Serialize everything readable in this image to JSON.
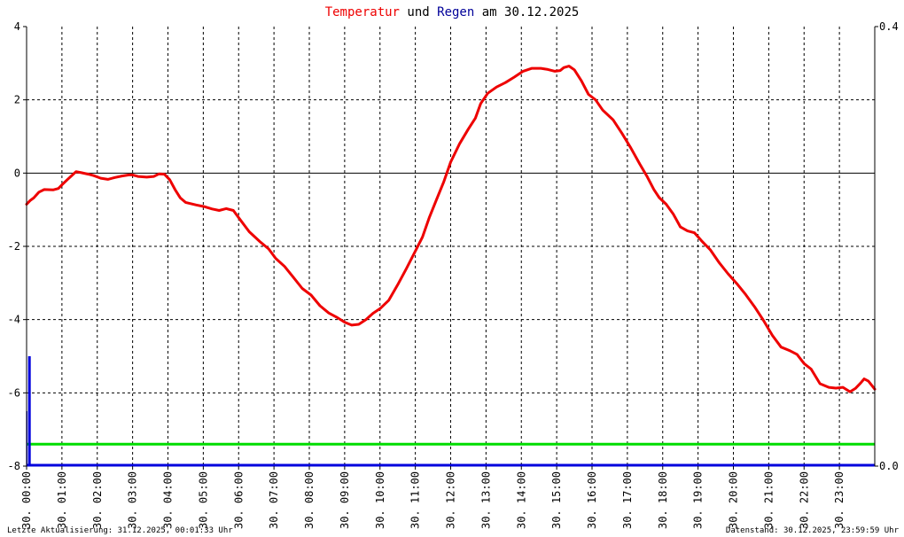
{
  "title": {
    "part1": "Temperatur",
    "part2": " und ",
    "part3": "Regen",
    "part4": " am 30.12.2025",
    "color_temperature": "#ee0000",
    "color_rain": "#000099",
    "color_text": "#000000"
  },
  "footer": {
    "left": "Letzte Aktualisierung: 31.12.2025, 00:01:33 Uhr",
    "right": "Datenstand: 30.12.2025, 23:59:59 Uhr"
  },
  "chart_data": {
    "type": "line",
    "title": "Temperatur und Regen am 30.12.2025",
    "grid": true,
    "x_range_hours": [
      0,
      24
    ],
    "y_left": {
      "range": [
        -8,
        4
      ],
      "ticks": [
        "4",
        "2",
        "0",
        "-2",
        "-4",
        "-6",
        "-8"
      ]
    },
    "y_right": {
      "range": [
        0,
        0.4
      ],
      "ticks": [
        "0.4",
        "0.0"
      ]
    },
    "x_tick_labels": [
      "30. 00:00",
      "30. 01:00",
      "30. 02:00",
      "30. 03:00",
      "30. 04:00",
      "30. 05:00",
      "30. 06:00",
      "30. 07:00",
      "30. 08:00",
      "30. 09:00",
      "30. 10:00",
      "30. 11:00",
      "30. 12:00",
      "30. 13:00",
      "30. 14:00",
      "30. 15:00",
      "30. 16:00",
      "30. 17:00",
      "30. 18:00",
      "30. 19:00",
      "30. 20:00",
      "30. 21:00",
      "30. 22:00",
      "30. 23:00"
    ],
    "temperature_color": "#ee0000",
    "rain_color": "#0000dd",
    "reference_line_color": "#00dd00",
    "reference_line_value": -7.4,
    "temperature": [
      [
        0.0,
        -0.85
      ],
      [
        0.1,
        -0.75
      ],
      [
        0.2,
        -0.68
      ],
      [
        0.35,
        -0.52
      ],
      [
        0.5,
        -0.45
      ],
      [
        0.75,
        -0.46
      ],
      [
        0.9,
        -0.42
      ],
      [
        1.0,
        -0.32
      ],
      [
        1.15,
        -0.18
      ],
      [
        1.3,
        -0.05
      ],
      [
        1.4,
        0.04
      ],
      [
        1.55,
        0.01
      ],
      [
        1.75,
        -0.03
      ],
      [
        1.9,
        -0.07
      ],
      [
        2.1,
        -0.14
      ],
      [
        2.3,
        -0.17
      ],
      [
        2.5,
        -0.12
      ],
      [
        2.7,
        -0.08
      ],
      [
        2.9,
        -0.05
      ],
      [
        3.0,
        -0.05
      ],
      [
        3.15,
        -0.09
      ],
      [
        3.4,
        -0.11
      ],
      [
        3.6,
        -0.09
      ],
      [
        3.75,
        -0.02
      ],
      [
        3.9,
        -0.03
      ],
      [
        4.05,
        -0.18
      ],
      [
        4.2,
        -0.45
      ],
      [
        4.35,
        -0.68
      ],
      [
        4.5,
        -0.8
      ],
      [
        4.8,
        -0.87
      ],
      [
        5.05,
        -0.92
      ],
      [
        5.25,
        -0.98
      ],
      [
        5.45,
        -1.02
      ],
      [
        5.65,
        -0.97
      ],
      [
        5.85,
        -1.02
      ],
      [
        6.05,
        -1.28
      ],
      [
        6.3,
        -1.6
      ],
      [
        6.6,
        -1.87
      ],
      [
        6.85,
        -2.07
      ],
      [
        7.05,
        -2.33
      ],
      [
        7.3,
        -2.55
      ],
      [
        7.55,
        -2.85
      ],
      [
        7.8,
        -3.15
      ],
      [
        8.05,
        -3.33
      ],
      [
        8.3,
        -3.62
      ],
      [
        8.55,
        -3.82
      ],
      [
        8.8,
        -3.95
      ],
      [
        9.0,
        -4.07
      ],
      [
        9.2,
        -4.15
      ],
      [
        9.4,
        -4.13
      ],
      [
        9.6,
        -4.0
      ],
      [
        9.8,
        -3.83
      ],
      [
        10.0,
        -3.7
      ],
      [
        10.25,
        -3.47
      ],
      [
        10.5,
        -3.05
      ],
      [
        10.75,
        -2.6
      ],
      [
        11.0,
        -2.13
      ],
      [
        11.2,
        -1.75
      ],
      [
        11.4,
        -1.2
      ],
      [
        11.6,
        -0.72
      ],
      [
        11.8,
        -0.25
      ],
      [
        12.0,
        0.3
      ],
      [
        12.25,
        0.8
      ],
      [
        12.5,
        1.2
      ],
      [
        12.7,
        1.5
      ],
      [
        12.85,
        1.9
      ],
      [
        13.05,
        2.18
      ],
      [
        13.3,
        2.35
      ],
      [
        13.55,
        2.47
      ],
      [
        13.8,
        2.62
      ],
      [
        14.05,
        2.78
      ],
      [
        14.3,
        2.86
      ],
      [
        14.55,
        2.86
      ],
      [
        14.75,
        2.83
      ],
      [
        14.95,
        2.78
      ],
      [
        15.1,
        2.8
      ],
      [
        15.2,
        2.88
      ],
      [
        15.35,
        2.92
      ],
      [
        15.5,
        2.82
      ],
      [
        15.7,
        2.52
      ],
      [
        15.9,
        2.15
      ],
      [
        16.1,
        2.0
      ],
      [
        16.3,
        1.72
      ],
      [
        16.6,
        1.45
      ],
      [
        16.85,
        1.08
      ],
      [
        17.1,
        0.68
      ],
      [
        17.35,
        0.25
      ],
      [
        17.55,
        -0.08
      ],
      [
        17.75,
        -0.45
      ],
      [
        17.9,
        -0.67
      ],
      [
        18.1,
        -0.85
      ],
      [
        18.3,
        -1.12
      ],
      [
        18.5,
        -1.47
      ],
      [
        18.7,
        -1.58
      ],
      [
        18.9,
        -1.63
      ],
      [
        19.1,
        -1.85
      ],
      [
        19.35,
        -2.1
      ],
      [
        19.6,
        -2.45
      ],
      [
        19.85,
        -2.75
      ],
      [
        20.1,
        -3.02
      ],
      [
        20.35,
        -3.32
      ],
      [
        20.6,
        -3.65
      ],
      [
        20.85,
        -4.02
      ],
      [
        21.1,
        -4.43
      ],
      [
        21.35,
        -4.75
      ],
      [
        21.6,
        -4.85
      ],
      [
        21.8,
        -4.95
      ],
      [
        22.0,
        -5.2
      ],
      [
        22.2,
        -5.35
      ],
      [
        22.45,
        -5.75
      ],
      [
        22.7,
        -5.85
      ],
      [
        22.9,
        -5.87
      ],
      [
        23.1,
        -5.85
      ],
      [
        23.3,
        -5.97
      ],
      [
        23.45,
        -5.88
      ],
      [
        23.6,
        -5.73
      ],
      [
        23.7,
        -5.62
      ],
      [
        23.82,
        -5.68
      ],
      [
        23.92,
        -5.8
      ],
      [
        24.0,
        -5.9
      ]
    ],
    "rain_spike": {
      "x_hours": [
        0.08,
        0.1
      ],
      "y_left_top": -5.0,
      "y_left_secondary": -6.5
    }
  }
}
